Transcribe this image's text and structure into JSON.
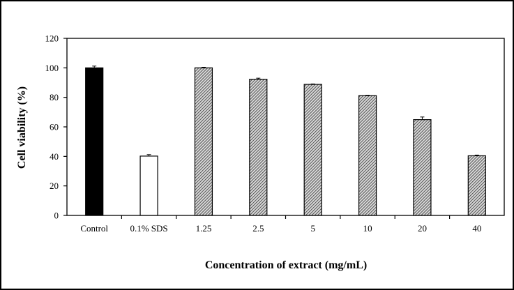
{
  "chart_data": {
    "type": "bar",
    "title": "",
    "xlabel": "Concentration of extract (mg/mL)",
    "ylabel": "Cell viability (%)",
    "ylim": [
      0,
      120
    ],
    "yticks": [
      "0",
      "20",
      "40",
      "60",
      "80",
      "100",
      "120"
    ],
    "categories": [
      "Control",
      "0.1% SDS",
      "1.25",
      "2.5",
      "5",
      "10",
      "20",
      "40"
    ],
    "values": [
      100,
      40.2,
      100,
      92.3,
      88.8,
      81.2,
      64.9,
      40.4
    ],
    "errors": [
      1.2,
      1.0,
      0.4,
      0.7,
      0.3,
      0.3,
      1.8,
      0.5
    ],
    "fills": [
      "solid-black",
      "white",
      "hatched",
      "hatched",
      "hatched",
      "hatched",
      "hatched",
      "hatched"
    ],
    "grid": false,
    "legend": "none"
  },
  "colors": {
    "black": "#000000",
    "white": "#ffffff",
    "hatch": "#7a7a7a"
  }
}
